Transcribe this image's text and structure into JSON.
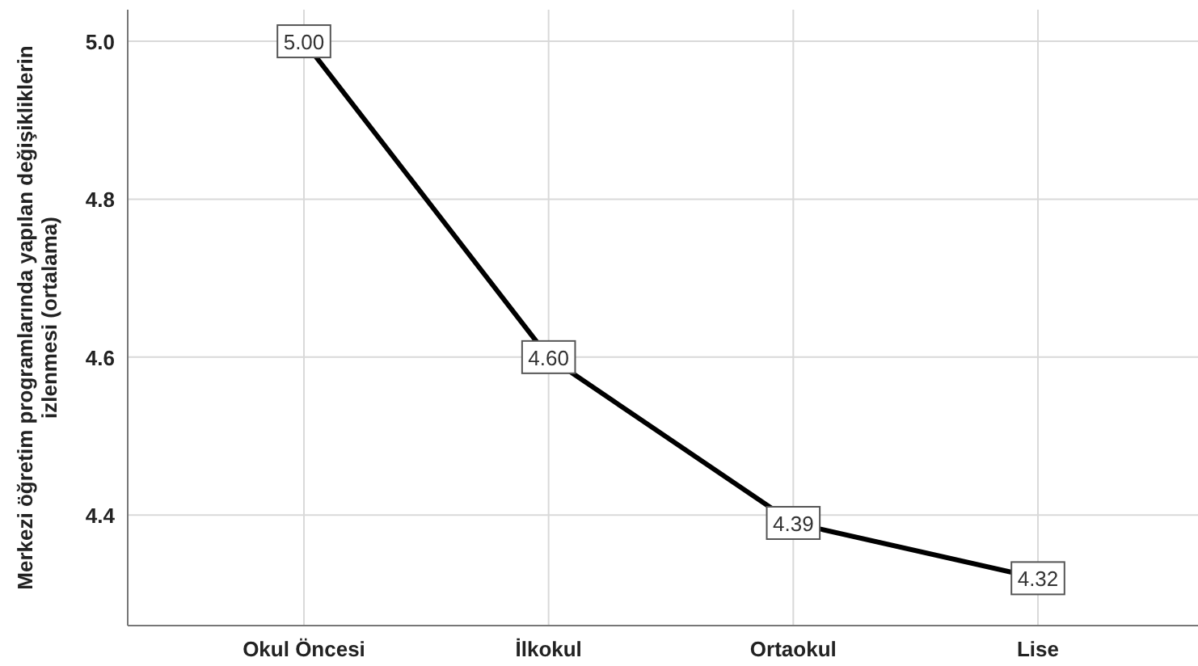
{
  "chart_data": {
    "type": "line",
    "ylabel": "Merkezi öğretim programlarında yapılan değişikliklerin izlenmesi (ortalama)",
    "categories": [
      "Okul Öncesi",
      "İlkokul",
      "Ortaokul",
      "Lise"
    ],
    "series": [
      {
        "color": "#000000",
        "values": [
          5.0,
          4.6,
          4.39,
          4.32
        ],
        "value_labels": [
          "5.00",
          "4.60",
          "4.39",
          "4.32"
        ]
      }
    ],
    "ylim": [
      4.26,
      5.04
    ],
    "yticks": [
      {
        "value": 4.4,
        "label": "4.4"
      },
      {
        "value": 4.6,
        "label": "4.6"
      },
      {
        "value": 4.8,
        "label": "4.8"
      },
      {
        "value": 5.0,
        "label": "5.0"
      }
    ],
    "grid": true,
    "marker": "square",
    "line_style": "solid"
  }
}
